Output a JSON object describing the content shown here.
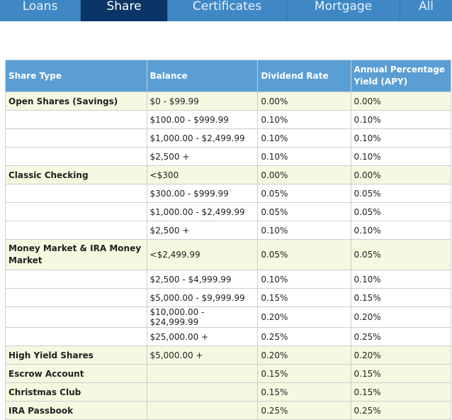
{
  "tabs": [
    {
      "label": "Loans"
    },
    {
      "label": "Share"
    },
    {
      "label": "Certificates"
    },
    {
      "label": "Mortgage"
    },
    {
      "label": "All"
    }
  ],
  "table": {
    "headers": [
      "Share Type",
      "Balance",
      "Dividend Rate",
      "Annual Percentage Yield (APY)"
    ],
    "rows": [
      {
        "type": "Open Shares (Savings)",
        "balance": "$0 - $99.99",
        "rate": "0.00%",
        "apy": "0.00%"
      },
      {
        "type": "",
        "balance": "$100.00 - $999.99",
        "rate": "0.10%",
        "apy": "0.10%"
      },
      {
        "type": "",
        "balance": "$1,000.00 - $2,499.99",
        "rate": "0.10%",
        "apy": "0.10%"
      },
      {
        "type": "",
        "balance": "$2,500 +",
        "rate": "0.10%",
        "apy": "0.10%"
      },
      {
        "type": "Classic Checking",
        "balance": "<$300",
        "rate": "0.00%",
        "apy": "0.00%"
      },
      {
        "type": "",
        "balance": "$300.00 - $999.99",
        "rate": "0.05%",
        "apy": "0.05%"
      },
      {
        "type": "",
        "balance": "$1,000.00 - $2,499.99",
        "rate": "0.05%",
        "apy": "0.05%"
      },
      {
        "type": "",
        "balance": "$2,500 +",
        "rate": "0.10%",
        "apy": "0.10%"
      },
      {
        "type": "Money Market & IRA Money Market",
        "balance": "<$2,499.99",
        "rate": "0.05%",
        "apy": "0.05%"
      },
      {
        "type": "",
        "balance": "$2,500 - $4,999.99",
        "rate": "0.10%",
        "apy": "0.10%"
      },
      {
        "type": "",
        "balance": "$5,000.00 - $9,999.99",
        "rate": "0.15%",
        "apy": "0.15%"
      },
      {
        "type": "",
        "balance": "$10,000.00 - $24,999.99",
        "rate": "0.20%",
        "apy": "0.20%"
      },
      {
        "type": "",
        "balance": "$25,000.00 +",
        "rate": "0.25%",
        "apy": "0.25%"
      },
      {
        "type": "High Yield Shares",
        "balance": "$5,000.00 +",
        "rate": "0.20%",
        "apy": "0.20%"
      },
      {
        "type": "Escrow Account",
        "balance": "",
        "rate": "0.15%",
        "apy": "0.15%"
      },
      {
        "type": "Christmas Club",
        "balance": "",
        "rate": "0.15%",
        "apy": "0.15%"
      },
      {
        "type": "IRA Passbook",
        "balance": "",
        "rate": "0.25%",
        "apy": "0.25%"
      }
    ]
  }
}
